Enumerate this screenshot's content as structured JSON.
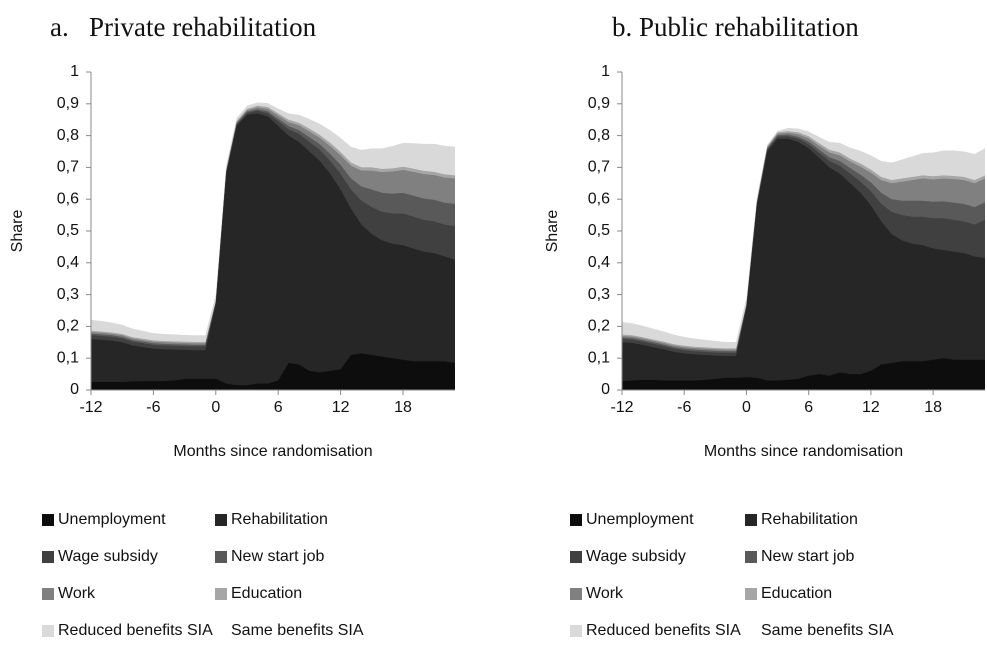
{
  "chart_data": [
    {
      "type": "stacked-area",
      "title": "a.   Private rehabilitation",
      "y_label": "Share",
      "x_label": "Months since randomisation",
      "x": [
        -12,
        -11,
        -10,
        -9,
        -8,
        -7,
        -6,
        -5,
        -4,
        -3,
        -2,
        -1,
        0,
        1,
        2,
        3,
        4,
        5,
        6,
        7,
        8,
        9,
        10,
        11,
        12,
        13,
        14,
        15,
        16,
        17,
        18,
        19,
        20,
        21,
        22,
        23
      ],
      "xlim": [
        -12,
        23
      ],
      "xticks": [
        -12,
        -6,
        0,
        6,
        12,
        18
      ],
      "ylim": [
        0,
        1
      ],
      "yticks": [
        0,
        {
          "value": 0.1,
          "label": "0,1"
        },
        {
          "value": 0.2,
          "label": "0,2"
        },
        {
          "value": 0.3,
          "label": "0,3"
        },
        {
          "value": 0.4,
          "label": "0,4"
        },
        {
          "value": 0.5,
          "label": "0,5"
        },
        {
          "value": 0.6,
          "label": "0,6"
        },
        {
          "value": 0.7,
          "label": "0,7"
        },
        {
          "value": 0.8,
          "label": "0,8"
        },
        {
          "value": 0.9,
          "label": "0,9"
        },
        1
      ],
      "series": [
        {
          "name": "Unemployment",
          "color": "#0d0d0d",
          "values": [
            0.025,
            0.025,
            0.025,
            0.025,
            0.027,
            0.027,
            0.028,
            0.028,
            0.03,
            0.035,
            0.035,
            0.035,
            0.035,
            0.02,
            0.015,
            0.015,
            0.02,
            0.02,
            0.03,
            0.085,
            0.08,
            0.06,
            0.055,
            0.06,
            0.065,
            0.11,
            0.115,
            0.11,
            0.105,
            0.1,
            0.095,
            0.09,
            0.09,
            0.09,
            0.09,
            0.085
          ]
        },
        {
          "name": "Rehabilitation",
          "color": "#262626",
          "values": [
            0.135,
            0.133,
            0.13,
            0.125,
            0.113,
            0.108,
            0.102,
            0.1,
            0.097,
            0.091,
            0.09,
            0.09,
            0.235,
            0.66,
            0.815,
            0.85,
            0.85,
            0.84,
            0.8,
            0.715,
            0.7,
            0.69,
            0.665,
            0.62,
            0.565,
            0.46,
            0.405,
            0.38,
            0.365,
            0.36,
            0.36,
            0.355,
            0.345,
            0.34,
            0.33,
            0.325
          ]
        },
        {
          "name": "Wage subsidy",
          "color": "#404040",
          "values": [
            0.012,
            0.012,
            0.012,
            0.012,
            0.012,
            0.012,
            0.012,
            0.012,
            0.012,
            0.012,
            0.012,
            0.012,
            0.005,
            0.005,
            0.005,
            0.006,
            0.008,
            0.01,
            0.015,
            0.02,
            0.025,
            0.03,
            0.035,
            0.04,
            0.05,
            0.06,
            0.075,
            0.085,
            0.09,
            0.095,
            0.1,
            0.1,
            0.1,
            0.1,
            0.1,
            0.105
          ]
        },
        {
          "name": "New start job",
          "color": "#595959",
          "values": [
            0.005,
            0.005,
            0.005,
            0.005,
            0.005,
            0.005,
            0.005,
            0.005,
            0.005,
            0.005,
            0.005,
            0.005,
            0.002,
            0.002,
            0.003,
            0.004,
            0.005,
            0.006,
            0.008,
            0.01,
            0.012,
            0.015,
            0.018,
            0.022,
            0.028,
            0.035,
            0.045,
            0.055,
            0.06,
            0.062,
            0.065,
            0.066,
            0.067,
            0.068,
            0.069,
            0.07
          ]
        },
        {
          "name": "Work",
          "color": "#808080",
          "values": [
            0.005,
            0.005,
            0.005,
            0.005,
            0.005,
            0.005,
            0.005,
            0.005,
            0.005,
            0.005,
            0.005,
            0.005,
            0.002,
            0.003,
            0.004,
            0.005,
            0.006,
            0.008,
            0.01,
            0.012,
            0.015,
            0.018,
            0.02,
            0.025,
            0.03,
            0.04,
            0.05,
            0.06,
            0.065,
            0.07,
            0.072,
            0.075,
            0.077,
            0.078,
            0.079,
            0.08
          ]
        },
        {
          "name": "Education",
          "color": "#a6a6a6",
          "values": [
            0.004,
            0.004,
            0.004,
            0.004,
            0.004,
            0.004,
            0.004,
            0.004,
            0.004,
            0.004,
            0.004,
            0.004,
            0.001,
            0.002,
            0.003,
            0.004,
            0.005,
            0.006,
            0.007,
            0.008,
            0.008,
            0.009,
            0.009,
            0.01,
            0.01,
            0.01,
            0.01,
            0.01,
            0.01,
            0.01,
            0.01,
            0.01,
            0.01,
            0.01,
            0.01,
            0.01
          ]
        },
        {
          "name": "Reduced benefits SIA",
          "color": "#d9d9d9",
          "values": [
            0.035,
            0.033,
            0.031,
            0.029,
            0.027,
            0.025,
            0.023,
            0.022,
            0.022,
            0.021,
            0.021,
            0.021,
            0.02,
            0.015,
            0.01,
            0.01,
            0.01,
            0.012,
            0.015,
            0.02,
            0.025,
            0.03,
            0.035,
            0.04,
            0.045,
            0.05,
            0.055,
            0.06,
            0.065,
            0.07,
            0.075,
            0.08,
            0.085,
            0.088,
            0.09,
            0.09
          ]
        },
        {
          "name": "Same benefits SIA",
          "color": "#ffffff",
          "values": [
            0,
            0,
            0,
            0,
            0,
            0,
            0,
            0,
            0,
            0,
            0,
            0,
            0,
            0,
            0,
            0,
            0,
            0,
            0,
            0,
            0,
            0,
            0,
            0,
            0,
            0,
            0,
            0,
            0,
            0,
            0,
            0,
            0,
            0,
            0,
            0
          ]
        }
      ]
    },
    {
      "type": "stacked-area",
      "title": "b. Public rehabilitation",
      "y_label": "Share",
      "x_label": "Months since randomisation",
      "x": [
        -12,
        -11,
        -10,
        -9,
        -8,
        -7,
        -6,
        -5,
        -4,
        -3,
        -2,
        -1,
        0,
        1,
        2,
        3,
        4,
        5,
        6,
        7,
        8,
        9,
        10,
        11,
        12,
        13,
        14,
        15,
        16,
        17,
        18,
        19,
        20,
        21,
        22,
        23
      ],
      "xlim": [
        -12,
        23
      ],
      "xticks": [
        -12,
        -6,
        0,
        6,
        12,
        18
      ],
      "ylim": [
        0,
        1
      ],
      "yticks": [
        0,
        {
          "value": 0.1,
          "label": "0,1"
        },
        {
          "value": 0.2,
          "label": "0,2"
        },
        {
          "value": 0.3,
          "label": "0,3"
        },
        {
          "value": 0.4,
          "label": "0,4"
        },
        {
          "value": 0.5,
          "label": "0,5"
        },
        {
          "value": 0.6,
          "label": "0,6"
        },
        {
          "value": 0.7,
          "label": "0,7"
        },
        {
          "value": 0.8,
          "label": "0,8"
        },
        {
          "value": 0.9,
          "label": "0,9"
        },
        1
      ],
      "series": [
        {
          "name": "Unemployment",
          "color": "#0d0d0d",
          "values": [
            0.028,
            0.03,
            0.032,
            0.032,
            0.03,
            0.03,
            0.03,
            0.03,
            0.032,
            0.035,
            0.038,
            0.038,
            0.04,
            0.038,
            0.03,
            0.03,
            0.032,
            0.035,
            0.045,
            0.05,
            0.045,
            0.055,
            0.05,
            0.05,
            0.06,
            0.08,
            0.085,
            0.09,
            0.09,
            0.09,
            0.095,
            0.1,
            0.095,
            0.095,
            0.095,
            0.095
          ]
        },
        {
          "name": "Rehabilitation",
          "color": "#262626",
          "values": [
            0.122,
            0.118,
            0.11,
            0.103,
            0.098,
            0.09,
            0.085,
            0.082,
            0.078,
            0.073,
            0.069,
            0.069,
            0.22,
            0.542,
            0.72,
            0.76,
            0.758,
            0.745,
            0.715,
            0.68,
            0.655,
            0.625,
            0.6,
            0.57,
            0.52,
            0.45,
            0.405,
            0.38,
            0.37,
            0.365,
            0.35,
            0.34,
            0.34,
            0.335,
            0.325,
            0.32
          ]
        },
        {
          "name": "Wage subsidy",
          "color": "#404040",
          "values": [
            0.01,
            0.01,
            0.01,
            0.01,
            0.01,
            0.01,
            0.01,
            0.01,
            0.01,
            0.01,
            0.01,
            0.01,
            0.005,
            0.005,
            0.006,
            0.007,
            0.008,
            0.01,
            0.013,
            0.016,
            0.02,
            0.025,
            0.03,
            0.035,
            0.045,
            0.055,
            0.07,
            0.08,
            0.085,
            0.09,
            0.095,
            0.1,
            0.1,
            0.1,
            0.1,
            0.12
          ]
        },
        {
          "name": "New start job",
          "color": "#595959",
          "values": [
            0.005,
            0.005,
            0.005,
            0.005,
            0.005,
            0.005,
            0.005,
            0.005,
            0.005,
            0.005,
            0.005,
            0.005,
            0.002,
            0.002,
            0.003,
            0.004,
            0.005,
            0.006,
            0.008,
            0.01,
            0.012,
            0.015,
            0.018,
            0.022,
            0.028,
            0.035,
            0.04,
            0.045,
            0.05,
            0.05,
            0.052,
            0.053,
            0.054,
            0.055,
            0.055,
            0.055
          ]
        },
        {
          "name": "Work",
          "color": "#808080",
          "values": [
            0.005,
            0.005,
            0.005,
            0.005,
            0.005,
            0.005,
            0.005,
            0.005,
            0.005,
            0.005,
            0.005,
            0.005,
            0.002,
            0.003,
            0.004,
            0.005,
            0.006,
            0.008,
            0.01,
            0.012,
            0.015,
            0.018,
            0.02,
            0.025,
            0.03,
            0.04,
            0.05,
            0.06,
            0.065,
            0.07,
            0.07,
            0.072,
            0.074,
            0.075,
            0.075,
            0.075
          ]
        },
        {
          "name": "Education",
          "color": "#a6a6a6",
          "values": [
            0.004,
            0.004,
            0.004,
            0.004,
            0.004,
            0.004,
            0.004,
            0.004,
            0.004,
            0.004,
            0.004,
            0.004,
            0.001,
            0.002,
            0.003,
            0.004,
            0.005,
            0.006,
            0.007,
            0.008,
            0.008,
            0.009,
            0.009,
            0.01,
            0.01,
            0.01,
            0.01,
            0.01,
            0.01,
            0.01,
            0.01,
            0.01,
            0.01,
            0.01,
            0.01,
            0.01
          ]
        },
        {
          "name": "Reduced benefits SIA",
          "color": "#d9d9d9",
          "values": [
            0.04,
            0.038,
            0.036,
            0.034,
            0.032,
            0.03,
            0.028,
            0.026,
            0.024,
            0.022,
            0.02,
            0.02,
            0.02,
            0.012,
            0.005,
            0.005,
            0.01,
            0.012,
            0.015,
            0.02,
            0.025,
            0.03,
            0.035,
            0.04,
            0.045,
            0.05,
            0.055,
            0.06,
            0.065,
            0.07,
            0.075,
            0.078,
            0.08,
            0.08,
            0.082,
            0.085
          ]
        },
        {
          "name": "Same benefits SIA",
          "color": "#ffffff",
          "values": [
            0,
            0,
            0,
            0,
            0,
            0,
            0,
            0,
            0,
            0,
            0,
            0,
            0,
            0,
            0,
            0,
            0,
            0,
            0,
            0,
            0,
            0,
            0,
            0,
            0,
            0,
            0,
            0,
            0,
            0,
            0,
            0,
            0,
            0,
            0,
            0
          ]
        }
      ]
    }
  ]
}
